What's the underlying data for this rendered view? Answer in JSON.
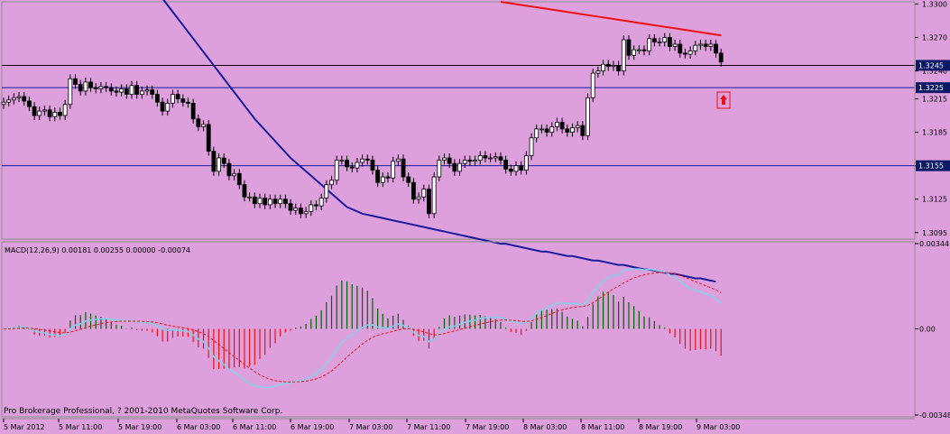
{
  "colors": {
    "background": "#dda0dd",
    "bull_candle": "#ffffff",
    "bear_candle": "#000000",
    "wick": "#000000",
    "ma_slow": "#1a1aa0",
    "ma_fast": "#ee1111",
    "hline_black": "#000000",
    "hline_blue": "#1a1aa0",
    "macd_line": "#87ceeb",
    "signal_line": "#ee1111",
    "hist_pos": "#006400",
    "hist_neg": "#ee1111",
    "price_label_bg": "#0a1a66",
    "arrow": "#ee1111"
  },
  "chart_data": [
    {
      "type": "candlestick",
      "name": "price",
      "y_ticks": [
        "1.3300",
        "1.3270",
        "1.3240",
        "1.3215",
        "1.3185",
        "1.3155",
        "1.3125",
        "1.3095"
      ],
      "ylim": [
        1.309,
        1.3302
      ],
      "x_ticks": [
        "5 Mar 2012",
        "5 Mar 11:00",
        "5 Mar 19:00",
        "6 Mar 03:00",
        "6 Mar 11:00",
        "6 Mar 19:00",
        "7 Mar 03:00",
        "7 Mar 11:00",
        "7 Mar 19:00",
        "8 Mar 03:00",
        "8 Mar 11:00",
        "8 Mar 19:00",
        "9 Mar 03:00"
      ],
      "hlines": [
        {
          "value": 1.3245,
          "label": "1.3245",
          "style": "black"
        },
        {
          "value": 1.3225,
          "label": "1.3225",
          "style": "blue"
        },
        {
          "value": 1.3155,
          "label": "1.3155",
          "style": "blue"
        }
      ],
      "close": [
        1.3212,
        1.3214,
        1.3216,
        1.3217,
        1.3213,
        1.3208,
        1.32,
        1.3204,
        1.3205,
        1.3199,
        1.3203,
        1.32,
        1.321,
        1.3233,
        1.3228,
        1.3222,
        1.323,
        1.3225,
        1.3224,
        1.3226,
        1.3225,
        1.3222,
        1.3221,
        1.3224,
        1.3219,
        1.3227,
        1.3219,
        1.3222,
        1.3223,
        1.3219,
        1.3212,
        1.3204,
        1.3211,
        1.3219,
        1.3215,
        1.3212,
        1.3211,
        1.3197,
        1.319,
        1.3192,
        1.3168,
        1.315,
        1.3162,
        1.3157,
        1.3146,
        1.3148,
        1.3138,
        1.3127,
        1.3127,
        1.3121,
        1.3126,
        1.312,
        1.3125,
        1.3121,
        1.3125,
        1.3121,
        1.3115,
        1.3117,
        1.3112,
        1.3114,
        1.312,
        1.3119,
        1.3126,
        1.3138,
        1.3142,
        1.316,
        1.316,
        1.3154,
        1.3153,
        1.3158,
        1.3161,
        1.316,
        1.3151,
        1.314,
        1.3145,
        1.3144,
        1.3159,
        1.3161,
        1.3145,
        1.314,
        1.3125,
        1.3127,
        1.3134,
        1.3112,
        1.3145,
        1.316,
        1.3162,
        1.3157,
        1.315,
        1.3157,
        1.316,
        1.3159,
        1.316,
        1.3164,
        1.3162,
        1.3162,
        1.3163,
        1.316,
        1.3152,
        1.315,
        1.3155,
        1.3151,
        1.3164,
        1.318,
        1.3188,
        1.3188,
        1.3185,
        1.319,
        1.3194,
        1.3188,
        1.3185,
        1.3189,
        1.3191,
        1.3182,
        1.3216,
        1.3238,
        1.324,
        1.3246,
        1.3244,
        1.3245,
        1.324,
        1.3268,
        1.3254,
        1.3259,
        1.3259,
        1.3258,
        1.3269,
        1.3266,
        1.3266,
        1.327,
        1.3262,
        1.3264,
        1.3256,
        1.3255,
        1.3258,
        1.3263,
        1.3264,
        1.3262,
        1.3264,
        1.3256,
        1.3248
      ]
    },
    {
      "type": "line",
      "name": "moving averages",
      "series": [
        {
          "key": "ma_slow",
          "start_index": 31,
          "values": [
            1.3305,
            1.3299,
            1.3293,
            1.3287,
            1.3281,
            1.3275,
            1.3269,
            1.3263,
            1.3257,
            1.3251,
            1.3245,
            1.3239,
            1.3233,
            1.3227,
            1.3221,
            1.3215,
            1.3209,
            1.3203,
            1.3197,
            1.3192,
            1.3187,
            1.3182,
            1.3177,
            1.3172,
            1.3167,
            1.3162,
            1.3158,
            1.3154,
            1.315,
            1.3146,
            1.3142,
            1.3138,
            1.3134,
            1.313,
            1.3126,
            1.3122,
            1.3118,
            1.3116,
            1.3114,
            1.3112,
            1.3111,
            1.311,
            1.3109,
            1.3108,
            1.3107,
            1.3106,
            1.3105,
            1.3104,
            1.3103,
            1.3102,
            1.3101,
            1.31,
            1.3099,
            1.3098,
            1.3097,
            1.3096,
            1.3095,
            1.3094,
            1.3093,
            1.3092,
            1.3091,
            1.309,
            1.3089,
            1.3088,
            1.3087,
            1.3086,
            1.3085,
            1.3085,
            1.3084,
            1.3083,
            1.3082,
            1.3081,
            1.308,
            1.3079,
            1.3078,
            1.3078,
            1.3077,
            1.3076,
            1.3075,
            1.3074,
            1.3074,
            1.3073,
            1.3072,
            1.3071,
            1.307,
            1.307,
            1.3069,
            1.3068,
            1.3067,
            1.3066,
            1.3066,
            1.3065,
            1.3064,
            1.3063,
            1.3062,
            1.3062,
            1.3061,
            1.306,
            1.3059,
            1.3058,
            1.3058,
            1.3057,
            1.3056,
            1.3055,
            1.3054,
            1.3054,
            1.3053,
            1.3052,
            1.3051
          ]
        },
        {
          "key": "ma_fast",
          "start_index": 0,
          "values": []
        }
      ]
    },
    {
      "type": "macd",
      "title": "MACD(12,26,9) 0.00181 0.00255 0.00000 -0.00074",
      "y_ticks": [
        "0.00344",
        "0.00",
        "-0.00348"
      ],
      "ylim": [
        -0.00348,
        0.00344
      ]
    }
  ],
  "copyright": "Pro Brokerage Professional, ? 2001-2010 MetaQuotes Software Corp."
}
